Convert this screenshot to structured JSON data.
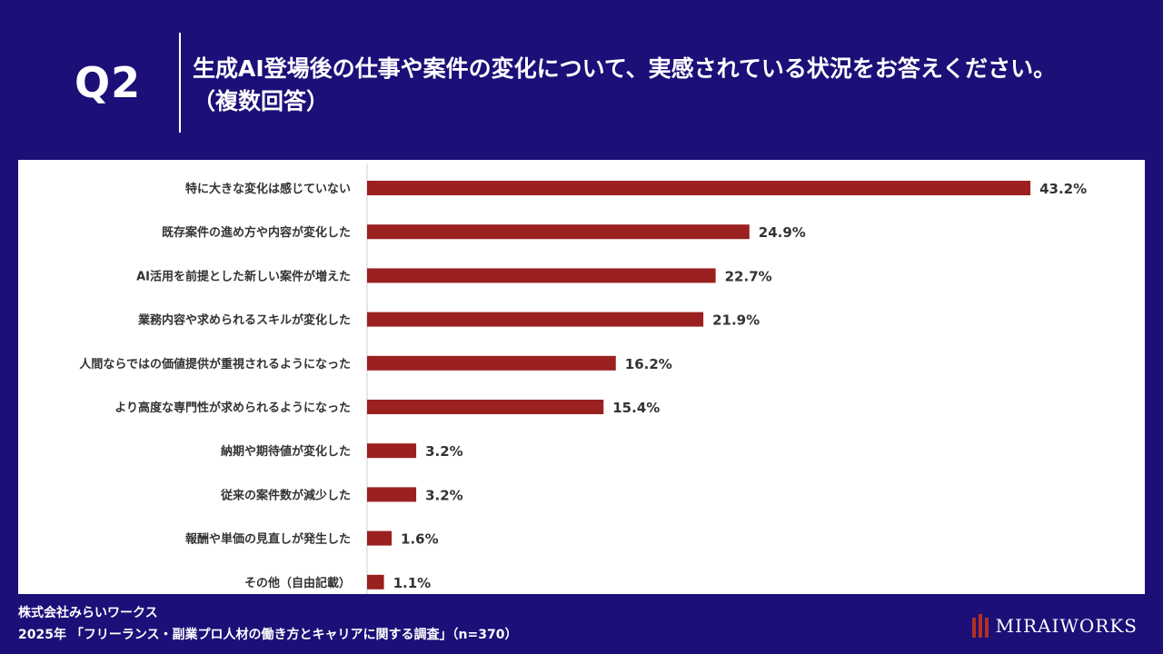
{
  "header": {
    "q_label": "Q2",
    "title_line1": "生成AI登場後の仕事や案件の変化について、実感されている状況をお答えください。",
    "title_line2": "（複数回答）"
  },
  "chart_data": {
    "type": "bar",
    "orientation": "horizontal",
    "categories": [
      "特に大きな変化は感じていない",
      "既存案件の進め方や内容が変化した",
      "AI活用を前提とした新しい案件が増えた",
      "業務内容や求められるスキルが変化した",
      "人間ならではの価値提供が重視されるようになった",
      "より高度な専門性が求められるようになった",
      "納期や期待値が変化した",
      "従来の案件数が減少した",
      "報酬や単価の見直しが発生した",
      "その他（自由記載）"
    ],
    "values": [
      43.2,
      24.9,
      22.7,
      21.9,
      16.2,
      15.4,
      3.2,
      3.2,
      1.6,
      1.1
    ],
    "value_labels": [
      "43.2%",
      "24.9%",
      "22.7%",
      "21.9%",
      "16.2%",
      "15.4%",
      "3.2%",
      "3.2%",
      "1.6%",
      "1.1%"
    ],
    "bar_color": "#9b2020",
    "xlim": [
      0,
      50
    ],
    "title": "",
    "xlabel": "",
    "ylabel": ""
  },
  "footer": {
    "company": "株式会社みらいワークス",
    "survey": "2025年 「フリーランス・副業プロ人材の働き方とキャリアに関する調査」（n=370）"
  },
  "logo": {
    "text": "MIRAIWORKS"
  },
  "colors": {
    "background": "#1c0f78",
    "panel": "#ffffff",
    "bar": "#9b2020",
    "logo_mark": "#b3301f"
  }
}
